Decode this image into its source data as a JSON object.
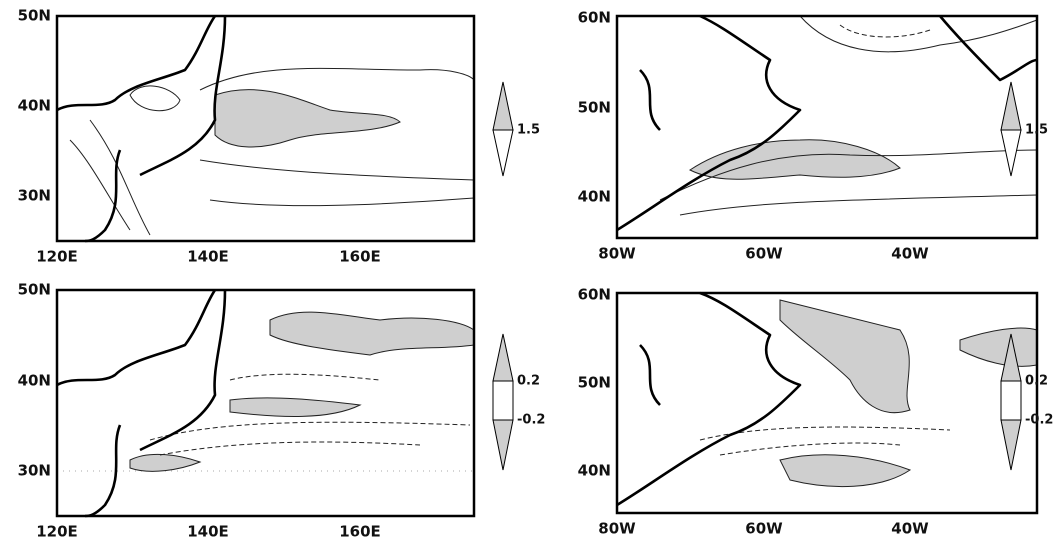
{
  "panels": [
    {
      "lat_labels": [
        "50N",
        "40N",
        "30N"
      ],
      "lon_labels": [
        "120E",
        "140E",
        "160E"
      ],
      "colorbar_labels": [
        "1.5"
      ]
    },
    {
      "lat_labels": [
        "60N",
        "50N",
        "40N"
      ],
      "lon_labels": [
        "80W",
        "60W",
        "40W"
      ],
      "colorbar_labels": [
        "1.5"
      ]
    },
    {
      "lat_labels": [
        "50N",
        "40N",
        "30N"
      ],
      "lon_labels": [
        "120E",
        "140E",
        "160E"
      ],
      "colorbar_labels": [
        "0.2",
        "-0.2"
      ]
    },
    {
      "lat_labels": [
        "60N",
        "50N",
        "40N"
      ],
      "lon_labels": [
        "80W",
        "60W",
        "40W"
      ],
      "colorbar_labels": [
        "0.2",
        "-0.2"
      ]
    }
  ]
}
